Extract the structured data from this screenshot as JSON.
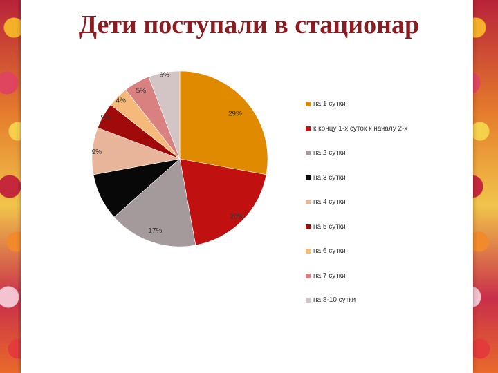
{
  "title": "Дети поступали в стационар",
  "chart_data": {
    "type": "pie",
    "title": "Дети поступали в стационар",
    "legend_position": "right",
    "slices": [
      {
        "label": "на 1 сутки",
        "value": 29,
        "value_label": "29%",
        "color": "#E08A00"
      },
      {
        "label": "к концу 1-х суток к началу 2-х",
        "value": 20,
        "value_label": "20%",
        "color": "#C01010"
      },
      {
        "label": "на 2 сутки",
        "value": 17,
        "value_label": "17%",
        "color": "#A49A9C"
      },
      {
        "label": "на 3 сутки",
        "value": 9,
        "value_label": "",
        "color": "#080808"
      },
      {
        "label": "на 4 сутки",
        "value": 9,
        "value_label": "9%",
        "color": "#E8B49A"
      },
      {
        "label": "на 5 сутки",
        "value": 5,
        "value_label": "5%",
        "color": "#A00A0A"
      },
      {
        "label": "на 6 сутки",
        "value": 4,
        "value_label": "4%",
        "color": "#F5B97A"
      },
      {
        "label": "на 7 сутки",
        "value": 5,
        "value_label": "5%",
        "color": "#D98080"
      },
      {
        "label": "на 8-10 сутки",
        "value": 6,
        "value_label": "6%",
        "color": "#D3C5C5"
      }
    ]
  }
}
